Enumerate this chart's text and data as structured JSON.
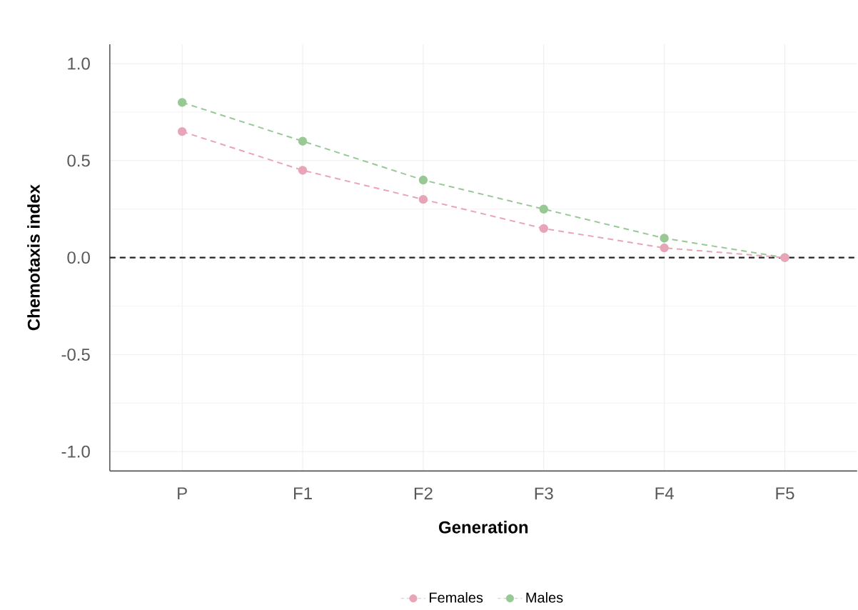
{
  "chart_data": {
    "type": "line",
    "xlabel": "Generation",
    "ylabel": "Chemotaxis index",
    "categories": [
      "P",
      "F1",
      "F2",
      "F3",
      "F4",
      "F5"
    ],
    "series": [
      {
        "name": "Females",
        "color": "#e8a5b8",
        "values": [
          0.65,
          0.45,
          0.3,
          0.15,
          0.05,
          0.0
        ]
      },
      {
        "name": "Males",
        "color": "#98c995",
        "values": [
          0.8,
          0.6,
          0.4,
          0.25,
          0.1,
          0.0
        ]
      }
    ],
    "ylim": [
      -1.1,
      1.1
    ],
    "yticks": [
      {
        "value": -1.0,
        "label": "-1.0"
      },
      -0.5,
      {
        "value": 0.0,
        "label": "0.0"
      },
      0.5,
      {
        "value": 1.0,
        "label": "1.0"
      }
    ],
    "ref_lines": [
      {
        "axis": "y",
        "value": 0,
        "color": "#222222",
        "line_style": "dashed"
      }
    ],
    "grid": true,
    "legend": "bottom",
    "marker": "circle",
    "line_style": "dashed"
  }
}
